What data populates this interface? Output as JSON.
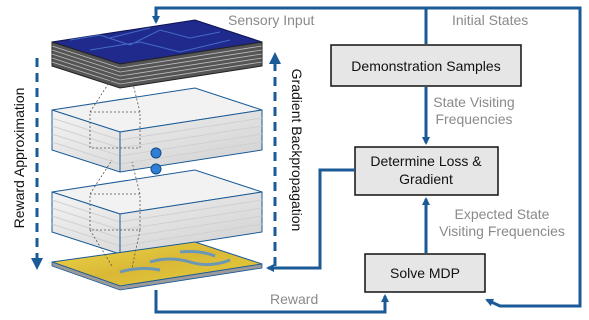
{
  "colors": {
    "flow": "#1a5a96",
    "box_fill": "#e6e6e6",
    "box_stroke": "#111111",
    "edge_text": "#8a8a8a",
    "sensory_map": "#1f2a8c",
    "reward_map": "#e0c93a"
  },
  "labels": {
    "sensory_input": "Sensory Input",
    "initial_states": "Initial States",
    "state_visiting_1": "State Visiting",
    "state_visiting_2": "Frequencies",
    "expected_1": "Expected State",
    "expected_2": "Visiting Frequencies",
    "reward": "Reward",
    "reward_approximation": "Reward Approximation",
    "gradient_backpropagation": "Gradient Backpropagation"
  },
  "boxes": {
    "demonstration_samples": "Demonstration Samples",
    "determine_loss_1": "Determine Loss &",
    "determine_loss_2": "Gradient",
    "solve_mdp": "Solve MDP"
  }
}
